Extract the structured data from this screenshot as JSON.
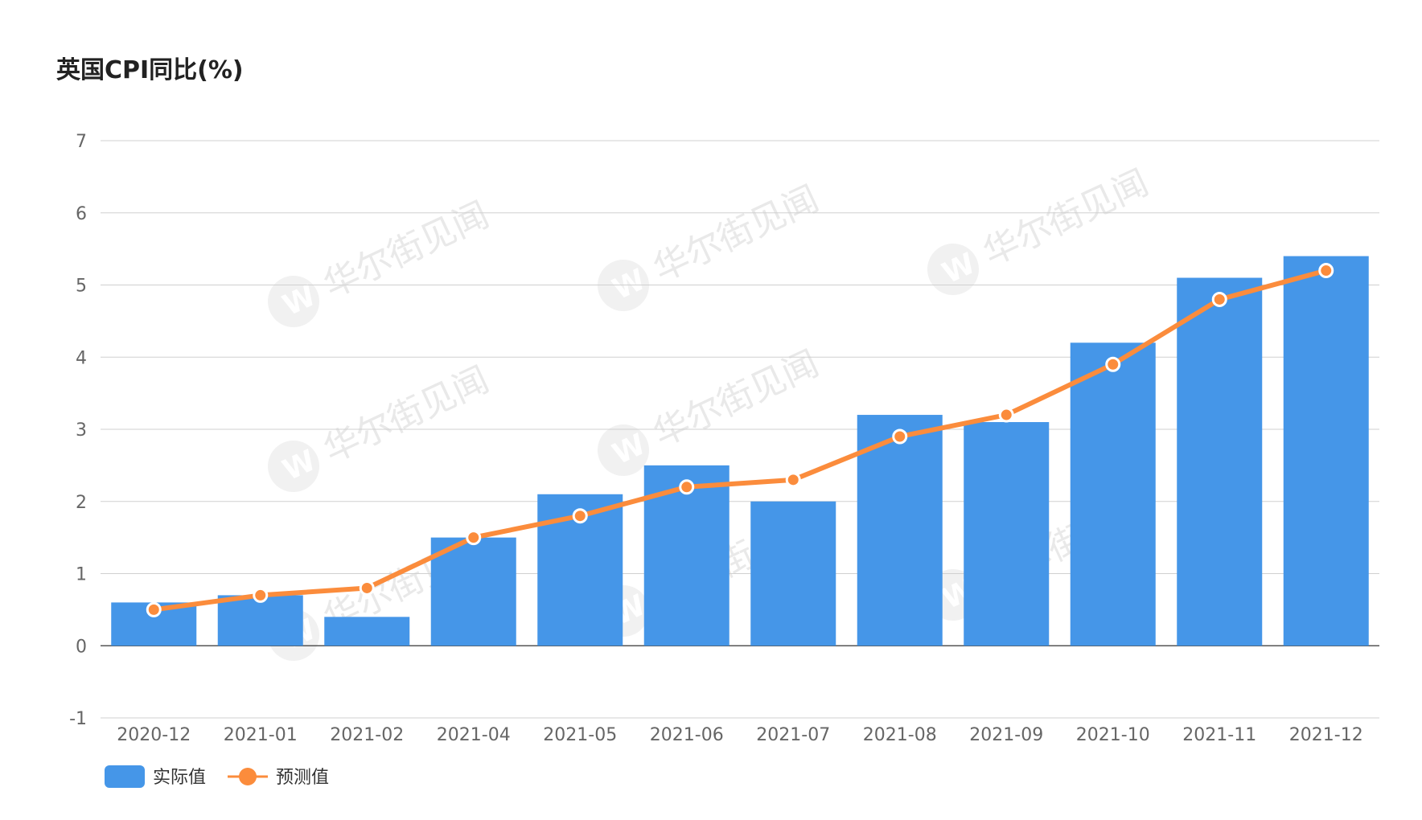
{
  "chart_data": {
    "type": "bar",
    "title": "英国CPI同比(%)",
    "categories": [
      "2020-12",
      "2021-01",
      "2021-02",
      "2021-04",
      "2021-05",
      "2021-06",
      "2021-07",
      "2021-08",
      "2021-09",
      "2021-10",
      "2021-11",
      "2021-12"
    ],
    "series": [
      {
        "name": "实际值",
        "type": "bar",
        "color": "#4596e8",
        "values": [
          0.6,
          0.7,
          0.4,
          1.5,
          2.1,
          2.5,
          2.0,
          3.2,
          3.1,
          4.2,
          5.1,
          5.4
        ]
      },
      {
        "name": "预测值",
        "type": "line",
        "color": "#fb8c3c",
        "values": [
          0.5,
          0.7,
          0.8,
          1.5,
          1.8,
          2.2,
          2.3,
          2.9,
          3.2,
          3.9,
          4.8,
          5.2
        ]
      }
    ],
    "ylim": [
      -1,
      7
    ],
    "yticks": [
      -1,
      0,
      1,
      2,
      3,
      4,
      5,
      6,
      7
    ],
    "grid": true,
    "legend": "bottom-left",
    "watermark": {
      "text": "华尔街见闻",
      "logo": "W"
    }
  }
}
